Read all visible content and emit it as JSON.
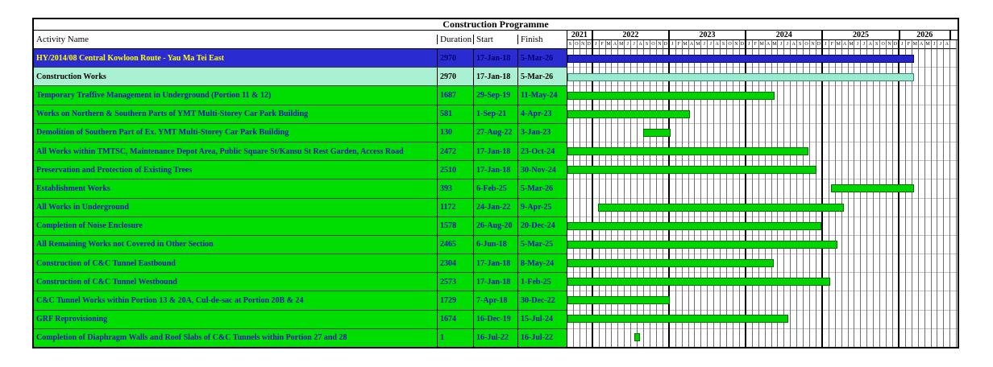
{
  "title": "Construction Programme",
  "columns": {
    "activity": "Activity Name",
    "duration": "Duration",
    "start": "Start",
    "finish": "Finish"
  },
  "colors": {
    "project_row_bg": "#2b2bd2",
    "project_bar": "#2424c8",
    "project_text": "#ffff00",
    "group_row_bg": "#aaf0d2",
    "group_bar": "#97ecce",
    "task_row_bg": "#00dd00",
    "task_bar": "#00d400",
    "task_text": "#0f0fc0"
  },
  "chart_data": {
    "type": "bar",
    "subtype": "gantt",
    "title": "Construction Programme",
    "timeline": {
      "start": "Sep-2021",
      "end": "Aug-2026",
      "years": [
        {
          "label": "2021",
          "months": [
            "S",
            "O",
            "N",
            "D"
          ]
        },
        {
          "label": "2022",
          "months": [
            "J",
            "F",
            "M",
            "A",
            "M",
            "J",
            "J",
            "A",
            "S",
            "O",
            "N",
            "D"
          ]
        },
        {
          "label": "2023",
          "months": [
            "J",
            "F",
            "M",
            "A",
            "M",
            "J",
            "J",
            "A",
            "S",
            "O",
            "N",
            "D"
          ]
        },
        {
          "label": "2024",
          "months": [
            "J",
            "F",
            "M",
            "A",
            "M",
            "J",
            "J",
            "A",
            "S",
            "O",
            "N",
            "D"
          ]
        },
        {
          "label": "2025",
          "months": [
            "J",
            "F",
            "M",
            "A",
            "M",
            "J",
            "J",
            "A",
            "S",
            "O",
            "N",
            "D"
          ]
        },
        {
          "label": "2026",
          "months": [
            "J",
            "F",
            "M",
            "A",
            "M",
            "J",
            "J",
            "A"
          ]
        }
      ]
    },
    "rows": [
      {
        "name": "HY/2014/08 Central Kowloon Route - Yau Ma Tei East",
        "duration": "2970",
        "start": "17-Jan-18",
        "finish": "5-Mar-26",
        "type": "project"
      },
      {
        "name": "Construction Works",
        "duration": "2970",
        "start": "17-Jan-18",
        "finish": "5-Mar-26",
        "type": "group"
      },
      {
        "name": "Temporary Traffive Management in Underground (Portion 11 & 12)",
        "duration": "1687",
        "start": "29-Sep-19",
        "finish": "11-May-24",
        "type": "task"
      },
      {
        "name": "Works on Northern & Southern Parts of YMT Multi-Storey Car Park Building",
        "duration": "581",
        "start": "1-Sep-21",
        "finish": "4-Apr-23",
        "type": "task"
      },
      {
        "name": "Demolition of Southern Part of Ex. YMT Multi-Storey Car Park Building",
        "duration": "130",
        "start": "27-Aug-22",
        "finish": "3-Jan-23",
        "type": "task"
      },
      {
        "name": "All Works within TMTSC, Maintenance Depot Area, Public Square St/Kansu St Rest Garden, Access Road",
        "duration": "2472",
        "start": "17-Jan-18",
        "finish": "23-Oct-24",
        "type": "task"
      },
      {
        "name": "Preservation and Protection of Existing Trees",
        "duration": "2510",
        "start": "17-Jan-18",
        "finish": "30-Nov-24",
        "type": "task"
      },
      {
        "name": "Establishment Works",
        "duration": "393",
        "start": "6-Feb-25",
        "finish": "5-Mar-26",
        "type": "task"
      },
      {
        "name": "All Works in Underground",
        "duration": "1172",
        "start": "24-Jan-22",
        "finish": "9-Apr-25",
        "type": "task"
      },
      {
        "name": "Completion of Noise Enclosure",
        "duration": "1578",
        "start": "26-Aug-20",
        "finish": "20-Dec-24",
        "type": "task"
      },
      {
        "name": "All Remaining Works not Covered in Other Section",
        "duration": "2465",
        "start": "6-Jun-18",
        "finish": "5-Mar-25",
        "type": "task"
      },
      {
        "name": "Construction of  C&C Tunnel Eastbound",
        "duration": "2304",
        "start": "17-Jan-18",
        "finish": "8-May-24",
        "type": "task"
      },
      {
        "name": "Construction of  C&C Tunnel Westbound",
        "duration": "2573",
        "start": "17-Jan-18",
        "finish": "1-Feb-25",
        "type": "task"
      },
      {
        "name": "C&C Tunnel Works within Portion 13 & 20A, Cul-de-sac at Portion 20B & 24",
        "duration": "1729",
        "start": "7-Apr-18",
        "finish": "30-Dec-22",
        "type": "task"
      },
      {
        "name": "GRF Reprovisioning",
        "duration": "1674",
        "start": "16-Dec-19",
        "finish": "15-Jul-24",
        "type": "task"
      },
      {
        "name": "Completion of Diaphragm Walls and Roof Slabs of C&C Tunnels within Portion 27 and 28",
        "duration": "1",
        "start": "16-Jul-22",
        "finish": "16-Jul-22",
        "type": "task"
      }
    ]
  }
}
